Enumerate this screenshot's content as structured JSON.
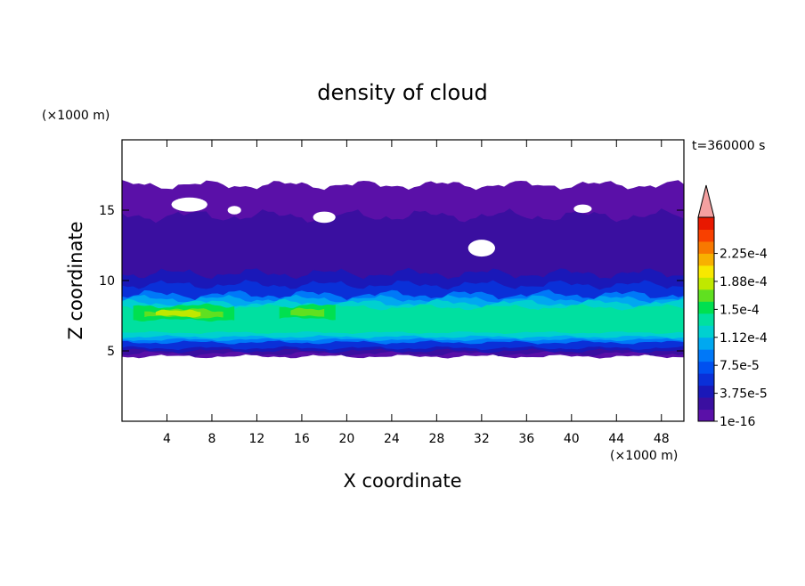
{
  "chart_data": {
    "type": "heatmap",
    "title": "density of cloud",
    "time_label": "t=360000 s",
    "xlabel": "X coordinate",
    "ylabel": "Z coordinate",
    "x_unit": "(×1000 m)",
    "y_unit": "(×1000 m)",
    "xlim": [
      0,
      50
    ],
    "ylim": [
      0,
      20
    ],
    "x_ticks": [
      4,
      8,
      12,
      16,
      20,
      24,
      28,
      32,
      36,
      40,
      44,
      48
    ],
    "y_ticks": [
      5,
      10,
      15
    ],
    "colorbar": {
      "tick_labels": [
        "1e-16",
        "3.75e-5",
        "7.5e-5",
        "1.12e-4",
        "1.5e-4",
        "1.88e-4",
        "2.25e-4"
      ],
      "extend": "max",
      "colors": [
        "#5a10a8",
        "#3a0fa0",
        "#1a18b8",
        "#0a30d8",
        "#0050f0",
        "#0078f8",
        "#00a8f0",
        "#00d0d0",
        "#00e0a0",
        "#00e050",
        "#60e020",
        "#c0e800",
        "#f8e800",
        "#f8b000",
        "#f87800",
        "#f84000",
        "#e81800"
      ],
      "extend_color": "#f4a0a0"
    },
    "cloud_layers": [
      {
        "level": "1e-16",
        "z_bottom": 4.6,
        "z_top": 16.8
      },
      {
        "level": "3.75e-5",
        "z_bottom": 5.0,
        "z_top": 10.5
      },
      {
        "level": "7.5e-5",
        "z_bottom": 5.6,
        "z_top": 9.0
      },
      {
        "level": "1.12e-4",
        "z_bottom": 6.0,
        "z_top": 8.4
      },
      {
        "level": "1.5e-4",
        "z_bottom": 7.2,
        "z_top": 8.2
      }
    ]
  }
}
